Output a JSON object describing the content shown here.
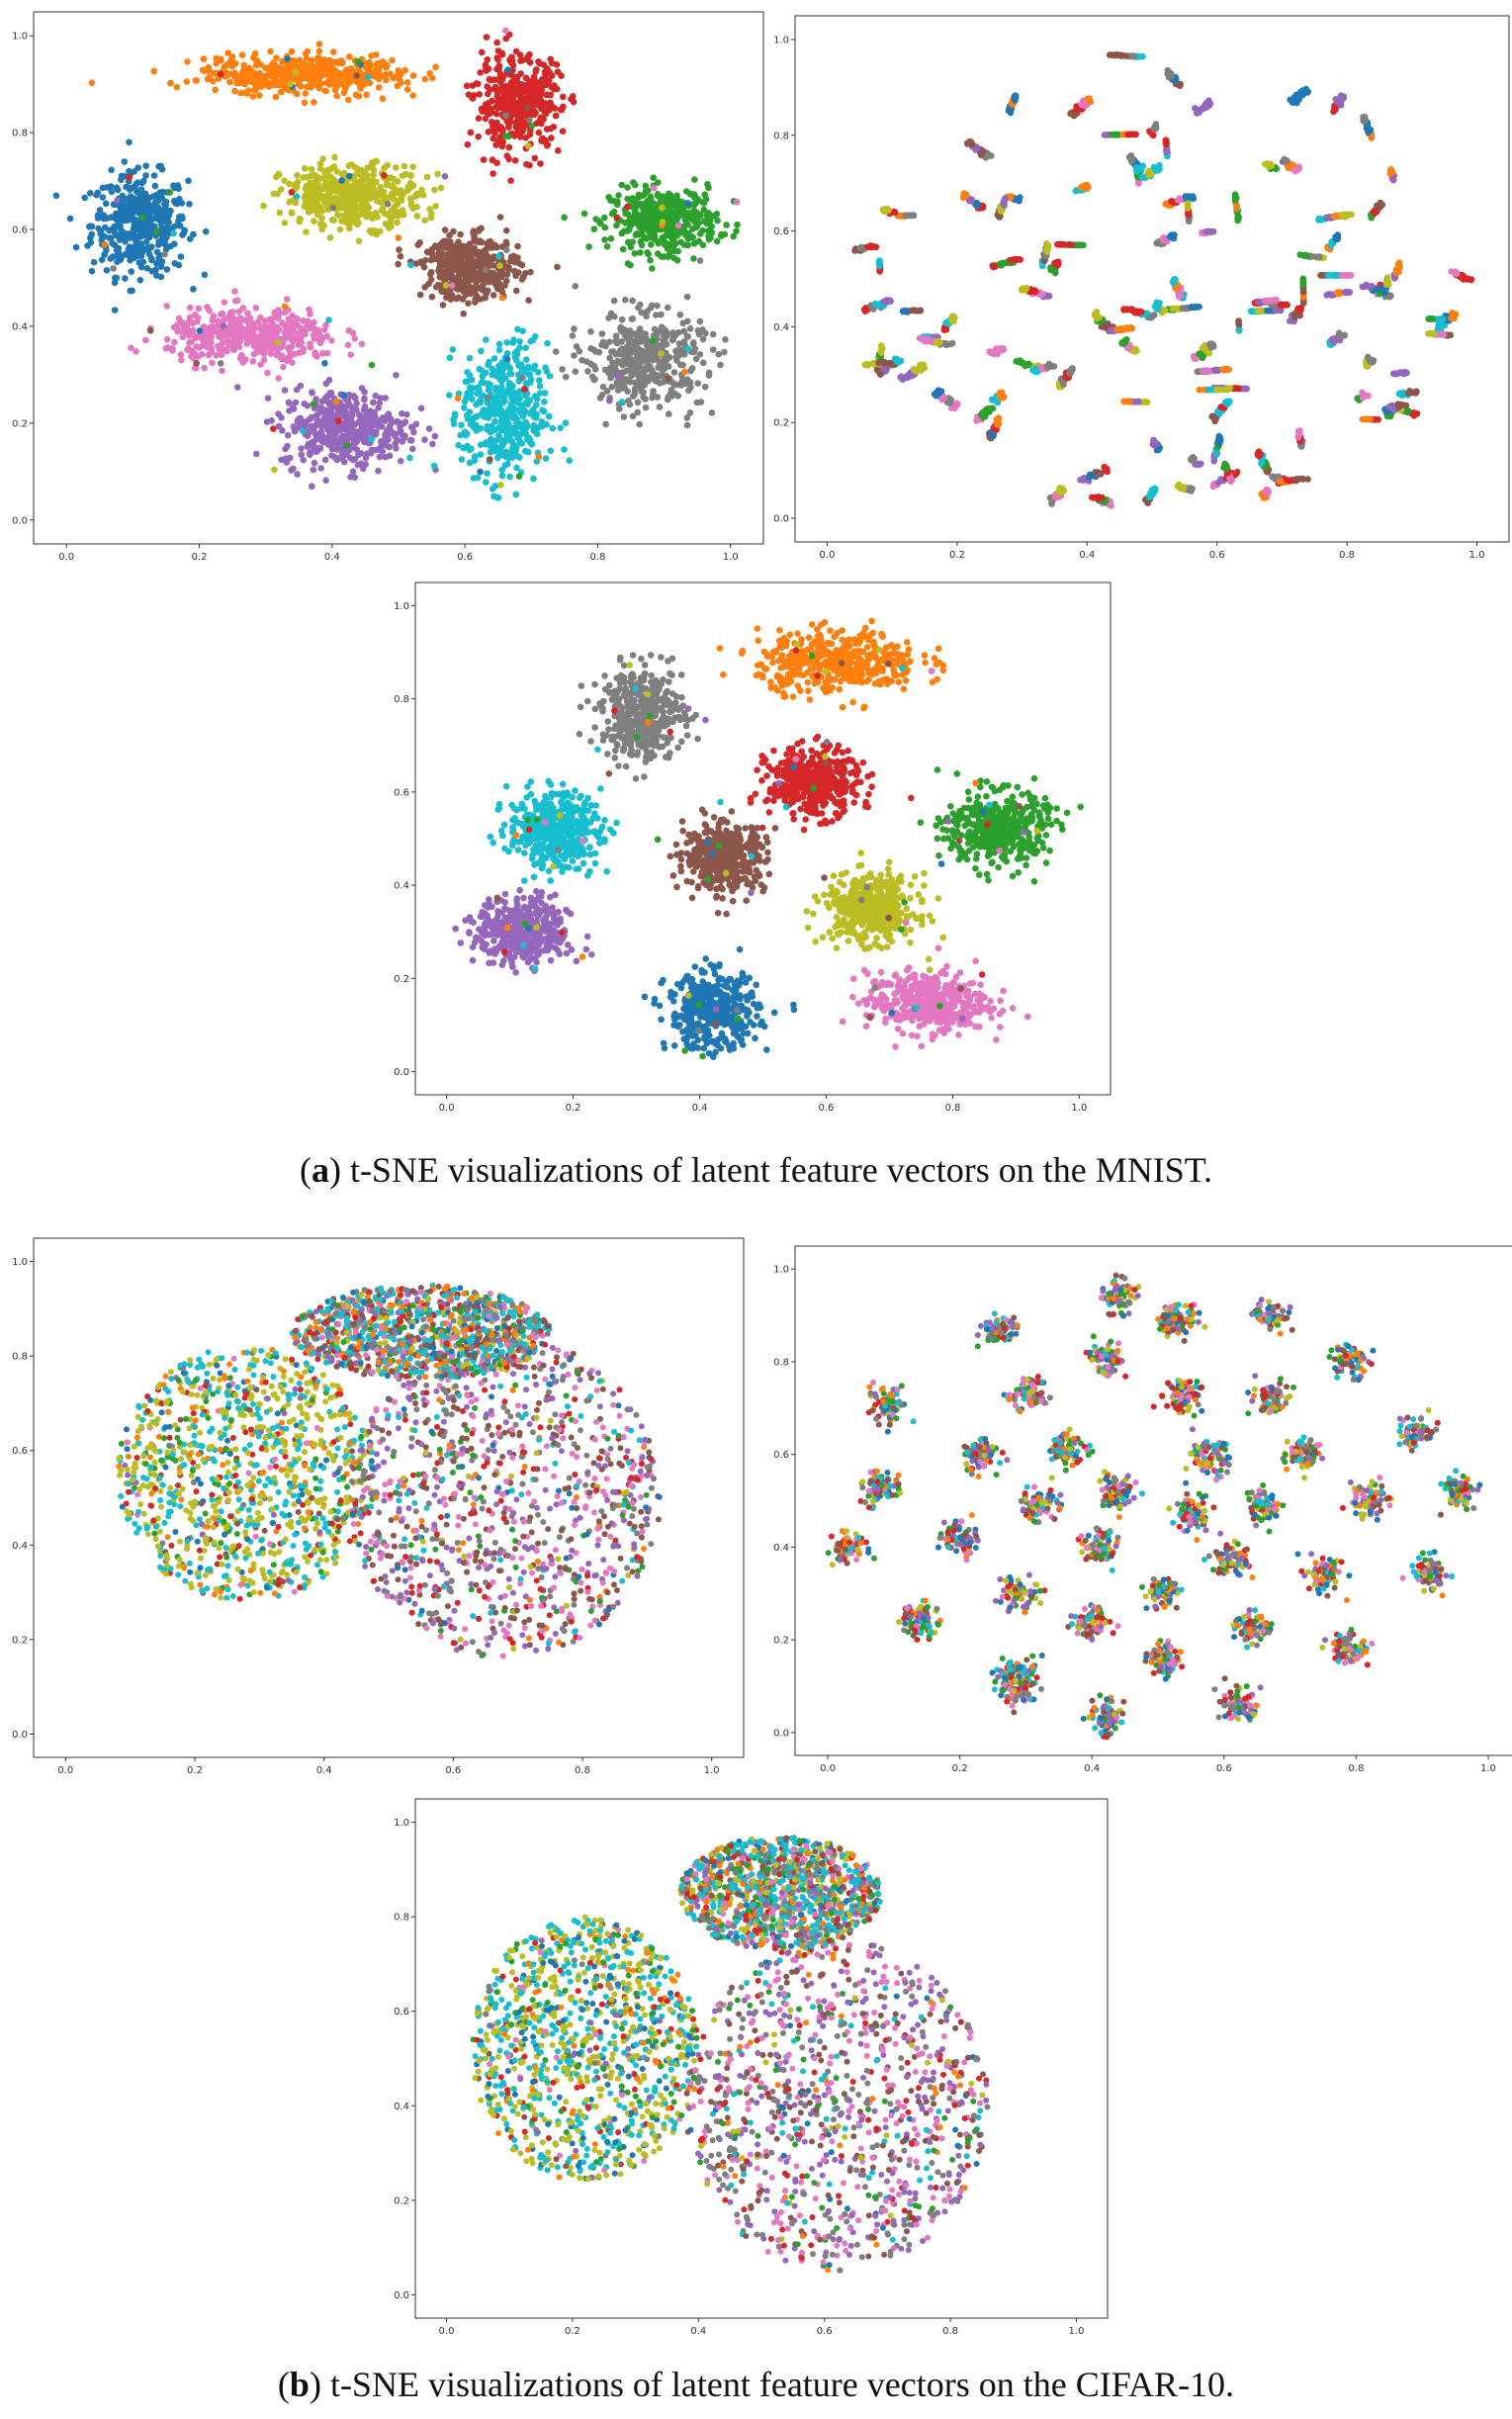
{
  "captions": [
    {
      "prefix": "(",
      "letter": "a",
      "text": ") t-SNE visualizations of latent feature vectors on the MNIST."
    },
    {
      "prefix": "(",
      "letter": "b",
      "text": ") t-SNE visualizations of latent feature vectors on the CIFAR-10."
    }
  ],
  "palette": [
    "#1f77b4",
    "#ff7f0e",
    "#2ca02c",
    "#d62728",
    "#9467bd",
    "#8c564b",
    "#e377c2",
    "#7f7f7f",
    "#bcbd22",
    "#17becf"
  ],
  "chart_data": [
    {
      "type": "scatter",
      "title": "",
      "xlabel": "",
      "ylabel": "",
      "xlim": [
        0,
        1
      ],
      "ylim": [
        0,
        1
      ],
      "xticks": [
        "0.0",
        "0.2",
        "0.4",
        "0.6",
        "0.8",
        "1.0"
      ],
      "yticks": [
        "0.0",
        "0.2",
        "0.4",
        "0.6",
        "0.8",
        "1.0"
      ],
      "grid": false,
      "legend": "none",
      "clusters": [
        {
          "class": 0,
          "color": "#1f77b4",
          "cx": 0.11,
          "cy": 0.61,
          "sx": 0.045,
          "sy": 0.065
        },
        {
          "class": 1,
          "color": "#ff7f0e",
          "cx": 0.36,
          "cy": 0.92,
          "sx": 0.1,
          "sy": 0.025
        },
        {
          "class": 2,
          "color": "#2ca02c",
          "cx": 0.9,
          "cy": 0.62,
          "sx": 0.05,
          "sy": 0.04
        },
        {
          "class": 3,
          "color": "#d62728",
          "cx": 0.68,
          "cy": 0.86,
          "sx": 0.04,
          "sy": 0.06
        },
        {
          "class": 4,
          "color": "#9467bd",
          "cx": 0.42,
          "cy": 0.19,
          "sx": 0.06,
          "sy": 0.05
        },
        {
          "class": 5,
          "color": "#8c564b",
          "cx": 0.61,
          "cy": 0.52,
          "sx": 0.045,
          "sy": 0.04
        },
        {
          "class": 6,
          "color": "#e377c2",
          "cx": 0.28,
          "cy": 0.38,
          "sx": 0.08,
          "sy": 0.035
        },
        {
          "class": 7,
          "color": "#7f7f7f",
          "cx": 0.87,
          "cy": 0.33,
          "sx": 0.055,
          "sy": 0.06
        },
        {
          "class": 8,
          "color": "#bcbd22",
          "cx": 0.43,
          "cy": 0.67,
          "sx": 0.065,
          "sy": 0.04
        },
        {
          "class": 9,
          "color": "#17becf",
          "cx": 0.66,
          "cy": 0.22,
          "sx": 0.04,
          "sy": 0.09
        }
      ]
    },
    {
      "type": "scatter",
      "title": "",
      "xlabel": "",
      "ylabel": "",
      "xlim": [
        0,
        1
      ],
      "ylim": [
        0,
        1
      ],
      "xticks": [
        "0.0",
        "0.2",
        "0.4",
        "0.6",
        "0.8",
        "1.0"
      ],
      "yticks": [
        "0.0",
        "0.2",
        "0.4",
        "0.6",
        "0.8",
        "1.0"
      ],
      "grid": false,
      "legend": "none",
      "pattern": "many small mixed clusters",
      "num_small_clusters": 110,
      "extent": {
        "cx": 0.5,
        "cy": 0.5,
        "rx": 0.48,
        "ry": 0.48
      }
    },
    {
      "type": "scatter",
      "title": "",
      "xlabel": "",
      "ylabel": "",
      "xlim": [
        0,
        1
      ],
      "ylim": [
        0,
        1
      ],
      "xticks": [
        "0.0",
        "0.2",
        "0.4",
        "0.6",
        "0.8",
        "1.0"
      ],
      "yticks": [
        "0.0",
        "0.2",
        "0.4",
        "0.6",
        "0.8",
        "1.0"
      ],
      "grid": false,
      "legend": "none",
      "clusters": [
        {
          "class": 0,
          "color": "#1f77b4",
          "cx": 0.42,
          "cy": 0.13,
          "sx": 0.045,
          "sy": 0.05
        },
        {
          "class": 1,
          "color": "#ff7f0e",
          "cx": 0.62,
          "cy": 0.88,
          "sx": 0.08,
          "sy": 0.04
        },
        {
          "class": 2,
          "color": "#2ca02c",
          "cx": 0.87,
          "cy": 0.52,
          "sx": 0.05,
          "sy": 0.05
        },
        {
          "class": 3,
          "color": "#d62728",
          "cx": 0.58,
          "cy": 0.62,
          "sx": 0.045,
          "sy": 0.045
        },
        {
          "class": 4,
          "color": "#9467bd",
          "cx": 0.12,
          "cy": 0.3,
          "sx": 0.045,
          "sy": 0.045
        },
        {
          "class": 5,
          "color": "#8c564b",
          "cx": 0.44,
          "cy": 0.46,
          "sx": 0.04,
          "sy": 0.045
        },
        {
          "class": 6,
          "color": "#e377c2",
          "cx": 0.76,
          "cy": 0.15,
          "sx": 0.06,
          "sy": 0.04
        },
        {
          "class": 7,
          "color": "#7f7f7f",
          "cx": 0.31,
          "cy": 0.77,
          "sx": 0.04,
          "sy": 0.06
        },
        {
          "class": 8,
          "color": "#bcbd22",
          "cx": 0.67,
          "cy": 0.35,
          "sx": 0.045,
          "sy": 0.045
        },
        {
          "class": 9,
          "color": "#17becf",
          "cx": 0.17,
          "cy": 0.52,
          "sx": 0.045,
          "sy": 0.05
        }
      ]
    },
    {
      "type": "scatter",
      "title": "",
      "xlabel": "",
      "ylabel": "",
      "xlim": [
        0,
        1
      ],
      "ylim": [
        0,
        1
      ],
      "xticks": [
        "0.0",
        "0.2",
        "0.4",
        "0.6",
        "0.8",
        "1.0"
      ],
      "yticks": [
        "0.0",
        "0.2",
        "0.4",
        "0.6",
        "0.8",
        "1.0"
      ],
      "grid": false,
      "legend": "none",
      "pattern": "one large mixed blob",
      "regions": [
        {
          "cx": 0.28,
          "cy": 0.55,
          "rx": 0.2,
          "ry": 0.27,
          "weights": [
            1,
            1,
            1,
            1,
            0.3,
            0.3,
            0.3,
            0.3,
            6,
            5
          ]
        },
        {
          "cx": 0.68,
          "cy": 0.5,
          "rx": 0.24,
          "ry": 0.34,
          "weights": [
            0.5,
            0.5,
            1,
            1.5,
            3,
            3,
            4,
            3,
            0.5,
            1
          ]
        },
        {
          "cx": 0.55,
          "cy": 0.85,
          "rx": 0.2,
          "ry": 0.1,
          "weights": [
            1,
            2,
            1,
            1,
            1,
            1,
            1,
            2,
            1,
            3
          ]
        }
      ]
    },
    {
      "type": "scatter",
      "title": "",
      "xlabel": "",
      "ylabel": "",
      "xlim": [
        0,
        1
      ],
      "ylim": [
        0,
        1
      ],
      "xticks": [
        "0.0",
        "0.2",
        "0.4",
        "0.6",
        "0.8",
        "1.0"
      ],
      "yticks": [
        "0.0",
        "0.2",
        "0.4",
        "0.6",
        "0.8",
        "1.0"
      ],
      "grid": false,
      "legend": "none",
      "pattern": "compact mixed clusters",
      "cluster_centers": [
        [
          0.44,
          0.94
        ],
        [
          0.26,
          0.87
        ],
        [
          0.53,
          0.89
        ],
        [
          0.67,
          0.9
        ],
        [
          0.79,
          0.8
        ],
        [
          0.42,
          0.8
        ],
        [
          0.3,
          0.73
        ],
        [
          0.54,
          0.73
        ],
        [
          0.67,
          0.72
        ],
        [
          0.09,
          0.71
        ],
        [
          0.89,
          0.65
        ],
        [
          0.23,
          0.6
        ],
        [
          0.36,
          0.61
        ],
        [
          0.58,
          0.59
        ],
        [
          0.72,
          0.6
        ],
        [
          0.08,
          0.53
        ],
        [
          0.32,
          0.49
        ],
        [
          0.44,
          0.52
        ],
        [
          0.55,
          0.47
        ],
        [
          0.66,
          0.49
        ],
        [
          0.82,
          0.5
        ],
        [
          0.96,
          0.52
        ],
        [
          0.03,
          0.4
        ],
        [
          0.2,
          0.42
        ],
        [
          0.41,
          0.4
        ],
        [
          0.61,
          0.37
        ],
        [
          0.75,
          0.34
        ],
        [
          0.91,
          0.34
        ],
        [
          0.29,
          0.3
        ],
        [
          0.51,
          0.3
        ],
        [
          0.14,
          0.24
        ],
        [
          0.4,
          0.24
        ],
        [
          0.64,
          0.23
        ],
        [
          0.79,
          0.18
        ],
        [
          0.29,
          0.13
        ],
        [
          0.51,
          0.16
        ],
        [
          0.42,
          0.03
        ],
        [
          0.62,
          0.06
        ],
        [
          0.29,
          0.1
        ]
      ]
    },
    {
      "type": "scatter",
      "title": "",
      "xlabel": "",
      "ylabel": "",
      "xlim": [
        0,
        1
      ],
      "ylim": [
        0,
        1
      ],
      "xticks": [
        "0.0",
        "0.2",
        "0.4",
        "0.6",
        "0.8",
        "1.0"
      ],
      "yticks": [
        "0.0",
        "0.2",
        "0.4",
        "0.6",
        "0.8",
        "1.0"
      ],
      "grid": false,
      "legend": "none",
      "pattern": "one large mixed blob",
      "regions": [
        {
          "cx": 0.22,
          "cy": 0.52,
          "rx": 0.18,
          "ry": 0.28,
          "weights": [
            2,
            1,
            1,
            1,
            0.3,
            0.3,
            0.3,
            0.3,
            6,
            5
          ]
        },
        {
          "cx": 0.62,
          "cy": 0.4,
          "rx": 0.24,
          "ry": 0.35,
          "weights": [
            0.5,
            0.5,
            1,
            1.5,
            3,
            3,
            4,
            3,
            0.5,
            1
          ]
        },
        {
          "cx": 0.53,
          "cy": 0.85,
          "rx": 0.16,
          "ry": 0.12,
          "weights": [
            1,
            1,
            1,
            1,
            1,
            1,
            1,
            2,
            2,
            4
          ]
        }
      ]
    }
  ]
}
